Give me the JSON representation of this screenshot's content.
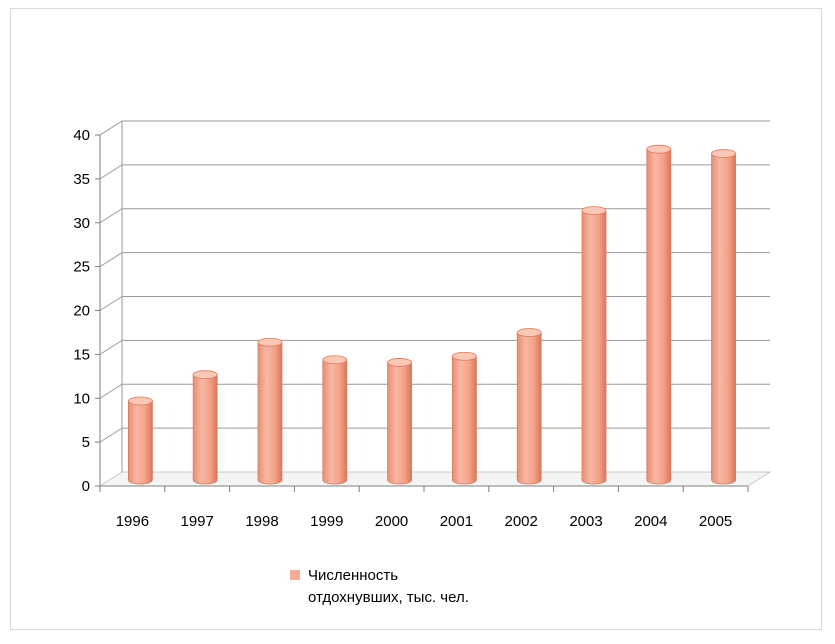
{
  "chart_data": {
    "type": "bar",
    "style": "3d-cylinder",
    "categories": [
      "1996",
      "1997",
      "1998",
      "1999",
      "2000",
      "2001",
      "2002",
      "2003",
      "2004",
      "2005"
    ],
    "series": [
      {
        "name": "Численность отдохнувших, тыс. чел.",
        "values": [
          9,
          12,
          15.7,
          13.7,
          13.4,
          14.1,
          16.8,
          30.7,
          37.7,
          37.2
        ]
      }
    ],
    "yticks": [
      "0",
      "5",
      "10",
      "15",
      "20",
      "25",
      "30",
      "35",
      "40"
    ],
    "ylim": [
      0,
      40
    ],
    "grid": true,
    "legend_position": "bottom",
    "colors": {
      "bar_body": "#f6ab94",
      "bar_edge": "#d97b62",
      "bar_top": "#fbc7b6",
      "grid": "#9a9a9a",
      "axis": "#7f7f7f",
      "floor": "#c8c8c8"
    }
  },
  "legend": {
    "line1": "Численность",
    "line2": "отдохнувших, тыс. чел."
  }
}
